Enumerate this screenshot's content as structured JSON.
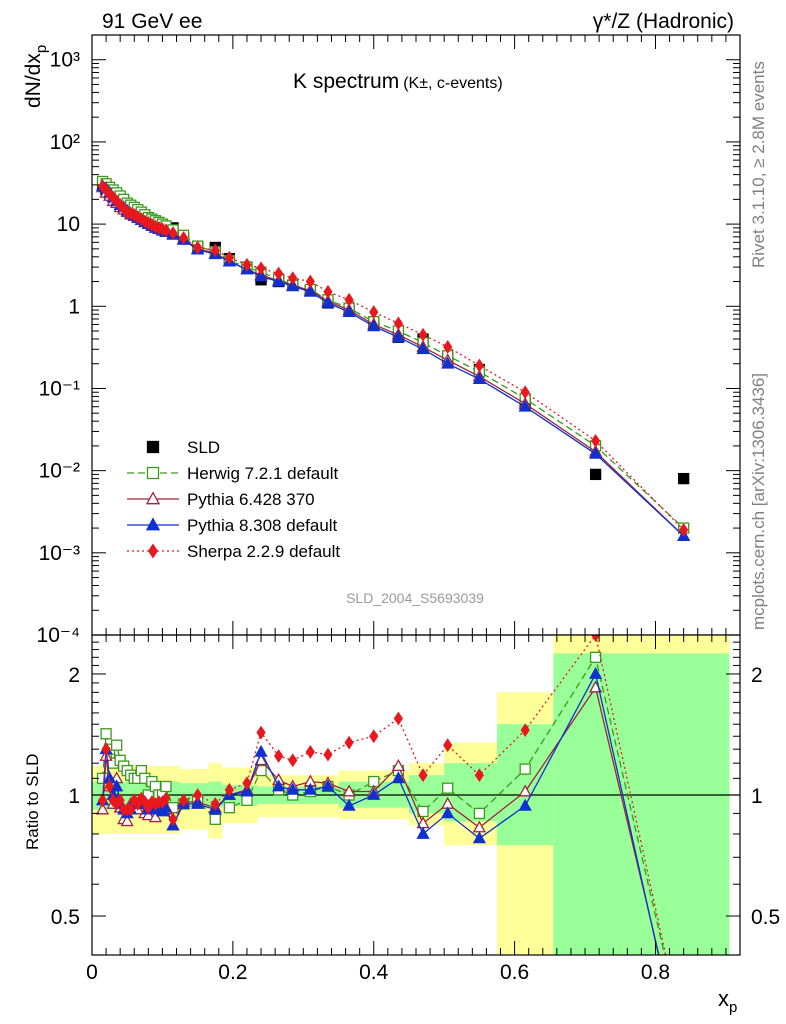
{
  "header": {
    "energy": "91 GeV ee",
    "process": "γ*/Z (Hadronic)"
  },
  "side_text": {
    "rivet": "Rivet 3.1.10, ≥ 2.8M events",
    "mcplots": "mcplots.cern.ch [arXiv:1306.3436]"
  },
  "analysis_id": "SLD_2004_S5693039",
  "chart_data": [
    {
      "type": "line",
      "panel": "main",
      "title": "K spectrum",
      "title_sub": "(K±, c-events)",
      "ylabel": "dN/dx",
      "ylabel_sub": "p",
      "yscale": "log",
      "ylim": [
        0.0001,
        2000
      ],
      "xlim": [
        0,
        0.92
      ],
      "yticks": [
        "10⁻⁴",
        "10⁻³",
        "10⁻²",
        "10⁻¹",
        "1",
        "10",
        "10²",
        "10³"
      ],
      "legend_position": "bottom-left",
      "x": [
        0.015,
        0.02,
        0.025,
        0.03,
        0.035,
        0.04,
        0.045,
        0.05,
        0.055,
        0.06,
        0.065,
        0.07,
        0.075,
        0.08,
        0.085,
        0.09,
        0.095,
        0.1,
        0.105,
        0.115,
        0.13,
        0.15,
        0.175,
        0.195,
        0.22,
        0.24,
        0.265,
        0.285,
        0.31,
        0.335,
        0.365,
        0.4,
        0.435,
        0.47,
        0.505,
        0.55,
        0.615,
        0.715,
        0.84
      ],
      "series": [
        {
          "name": "SLD",
          "style": "data",
          "color": "#000000",
          "marker": "filled-square",
          "values": [
            30,
            26,
            24,
            22,
            20,
            18,
            17,
            16,
            15,
            14,
            13,
            12,
            11,
            11,
            10,
            9.8,
            9.5,
            9.2,
            8.8,
            9.0,
            6.8,
            5.3,
            5.2,
            3.8,
            3.0,
            2.1,
            2.0,
            1.8,
            1.55,
            1.1,
            0.9,
            0.6,
            0.42,
            0.4,
            0.24,
            0.17,
            0.065,
            0.009,
            0.008
          ]
        },
        {
          "name": "Herwig 7.2.1 default",
          "style": "dashed",
          "color": "#3a9a1a",
          "marker": "open-square",
          "values": [
            33,
            31,
            28,
            26,
            24,
            22,
            20,
            18,
            17,
            16,
            15,
            14,
            13,
            12,
            11.5,
            11,
            10.5,
            10,
            9.5,
            8.5,
            7.3,
            5.4,
            4.6,
            3.6,
            3.0,
            2.6,
            2.15,
            1.8,
            1.6,
            1.2,
            0.95,
            0.65,
            0.5,
            0.36,
            0.25,
            0.16,
            0.075,
            0.02,
            0.002
          ]
        },
        {
          "name": "Pythia 6.428 370",
          "style": "solid",
          "color": "#a0243a",
          "marker": "open-triangle",
          "values": [
            28,
            24,
            22,
            19,
            18,
            16,
            15,
            14,
            13,
            12.5,
            11.8,
            11.2,
            10.5,
            10,
            9.5,
            9.0,
            8.8,
            8.5,
            8.2,
            7.6,
            6.6,
            5.0,
            4.4,
            3.5,
            2.8,
            2.4,
            2.05,
            1.8,
            1.55,
            1.15,
            0.9,
            0.6,
            0.45,
            0.32,
            0.22,
            0.14,
            0.065,
            0.017,
            0.0016
          ]
        },
        {
          "name": "Pythia 8.308 default",
          "style": "solid",
          "color": "#1030d0",
          "marker": "filled-triangle",
          "values": [
            29,
            27,
            24,
            21,
            19,
            17,
            16,
            14.5,
            13.5,
            12.8,
            12,
            11.2,
            10.6,
            10,
            9.5,
            9.0,
            8.7,
            8.3,
            8.0,
            7.4,
            6.4,
            4.9,
            4.3,
            3.5,
            2.8,
            2.3,
            2.0,
            1.75,
            1.5,
            1.1,
            0.85,
            0.57,
            0.42,
            0.3,
            0.2,
            0.13,
            0.06,
            0.016,
            0.0016
          ]
        },
        {
          "name": "Sherpa 2.2.9 default",
          "style": "dotted",
          "color": "#e8181e",
          "marker": "filled-diamond",
          "values": [
            29,
            26,
            23,
            21,
            19,
            17,
            15.5,
            14,
            13.5,
            13,
            12.2,
            11.5,
            10.8,
            10.3,
            9.8,
            9.3,
            9.0,
            8.7,
            8.4,
            7.8,
            6.8,
            5.2,
            4.8,
            3.9,
            3.2,
            2.9,
            2.5,
            2.2,
            2.0,
            1.5,
            1.2,
            0.85,
            0.62,
            0.45,
            0.32,
            0.19,
            0.09,
            0.023,
            0.0019
          ]
        }
      ]
    },
    {
      "type": "line",
      "panel": "ratio",
      "ylabel": "Ratio to SLD",
      "xlabel": "x",
      "xlabel_sub": "p",
      "yscale": "log",
      "ylim": [
        0.4,
        2.5
      ],
      "xlim": [
        0,
        0.92
      ],
      "yticks": [
        "0.5",
        "1",
        "2"
      ],
      "xticks": [
        "0",
        "0.2",
        "0.4",
        "0.6",
        "0.8"
      ],
      "band_colors": {
        "stat": "#99ff99",
        "total": "#ffff99"
      },
      "bands": [
        {
          "x": [
            0.0,
            0.125
          ],
          "stat": [
            0.92,
            1.08
          ],
          "total": [
            0.8,
            1.18
          ]
        },
        {
          "x": [
            0.125,
            0.165
          ],
          "stat": [
            0.93,
            1.07
          ],
          "total": [
            0.82,
            1.16
          ]
        },
        {
          "x": [
            0.165,
            0.185
          ],
          "stat": [
            0.93,
            1.08
          ],
          "total": [
            0.78,
            1.2
          ]
        },
        {
          "x": [
            0.185,
            0.235
          ],
          "stat": [
            0.94,
            1.06
          ],
          "total": [
            0.85,
            1.17
          ]
        },
        {
          "x": [
            0.235,
            0.35
          ],
          "stat": [
            0.95,
            1.05
          ],
          "total": [
            0.88,
            1.12
          ]
        },
        {
          "x": [
            0.35,
            0.45
          ],
          "stat": [
            0.93,
            1.08
          ],
          "total": [
            0.87,
            1.15
          ]
        },
        {
          "x": [
            0.45,
            0.5
          ],
          "stat": [
            0.9,
            1.12
          ],
          "total": [
            0.84,
            1.2
          ]
        },
        {
          "x": [
            0.5,
            0.575
          ],
          "stat": [
            0.86,
            1.2
          ],
          "total": [
            0.75,
            1.35
          ]
        },
        {
          "x": [
            0.575,
            0.655
          ],
          "stat": [
            0.75,
            1.5
          ],
          "total": [
            0.4,
            1.8
          ]
        },
        {
          "x": [
            0.655,
            0.905
          ],
          "stat": [
            0.4,
            2.25
          ],
          "total": [
            0.4,
            2.5
          ]
        }
      ],
      "series": [
        {
          "name": "Herwig 7.2.1 default",
          "style": "dashed",
          "color": "#3a9a1a",
          "marker": "open-square",
          "values": [
            1.1,
            1.42,
            1.3,
            1.2,
            1.33,
            1.22,
            1.18,
            1.15,
            1.12,
            1.1,
            1.1,
            1.15,
            1.1,
            1.0,
            1.08,
            1.05,
            1.0,
            1.0,
            1.05,
            0.93,
            0.95,
            0.97,
            0.87,
            0.93,
            0.97,
            1.15,
            1.03,
            1.0,
            1.02,
            1.05,
            1.0,
            1.08,
            1.15,
            0.91,
            1.04,
            0.9,
            1.16,
            2.2,
            0.25
          ]
        },
        {
          "name": "Pythia 6.428 370",
          "style": "solid",
          "color": "#a0243a",
          "marker": "open-triangle",
          "values": [
            0.92,
            1.25,
            1.05,
            0.95,
            1.1,
            0.93,
            0.87,
            0.86,
            0.95,
            0.97,
            0.92,
            0.95,
            0.9,
            0.89,
            0.95,
            0.88,
            0.93,
            0.93,
            0.92,
            0.84,
            0.96,
            0.96,
            0.93,
            1.0,
            1.03,
            1.22,
            1.09,
            1.05,
            1.08,
            1.07,
            1.02,
            1.02,
            1.18,
            0.85,
            0.95,
            0.83,
            1.02,
            1.85,
            0.22
          ]
        },
        {
          "name": "Pythia 8.308 default",
          "style": "solid",
          "color": "#1030d0",
          "marker": "filled-triangle",
          "values": [
            0.97,
            1.3,
            1.1,
            1.0,
            1.05,
            0.95,
            0.92,
            0.9,
            0.92,
            0.96,
            0.95,
            0.97,
            0.96,
            0.92,
            0.95,
            0.92,
            0.92,
            0.91,
            0.93,
            0.84,
            0.95,
            0.95,
            0.92,
            1.0,
            1.02,
            1.28,
            1.05,
            1.03,
            1.03,
            1.05,
            0.94,
            1.0,
            1.1,
            0.8,
            0.9,
            0.78,
            0.94,
            2.0,
            0.21
          ]
        },
        {
          "name": "Sherpa 2.2.9 default",
          "style": "dotted",
          "color": "#e8181e",
          "marker": "filled-diamond",
          "values": [
            0.97,
            1.3,
            1.05,
            0.97,
            0.95,
            0.97,
            0.92,
            0.92,
            0.92,
            0.97,
            0.95,
            0.98,
            0.96,
            0.93,
            0.96,
            0.95,
            0.96,
            0.96,
            0.98,
            0.87,
            0.97,
            1.0,
            0.95,
            1.03,
            1.07,
            1.43,
            1.25,
            1.22,
            1.28,
            1.26,
            1.35,
            1.4,
            1.55,
            1.12,
            1.33,
            1.12,
            1.45,
            2.5,
            0.25
          ]
        }
      ]
    }
  ]
}
